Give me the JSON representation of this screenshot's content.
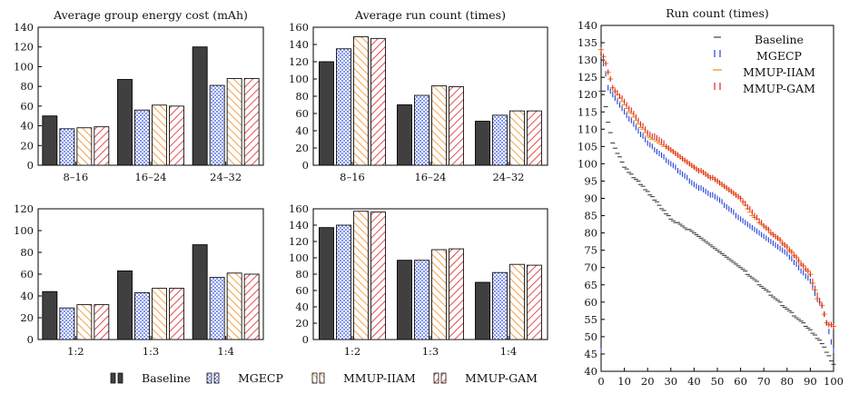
{
  "colors": {
    "Baseline": "#404040",
    "MGECP": "#1f3fd8",
    "MMUP-IIAM": "#f08a18",
    "MMUP-GAM": "#e02020"
  },
  "chart_data": [
    {
      "id": "energy_cost_A",
      "type": "bar",
      "title": "Average group energy cost (mAh)",
      "categories": [
        "8–16",
        "16–24",
        "24–32"
      ],
      "ylim": [
        0,
        140
      ],
      "yticks": [
        0,
        20,
        40,
        60,
        80,
        100,
        120,
        140
      ],
      "series": [
        {
          "name": "Baseline",
          "values": [
            50,
            87,
            120
          ]
        },
        {
          "name": "MGECP",
          "values": [
            37,
            56,
            81
          ]
        },
        {
          "name": "MMUP-IIAM",
          "values": [
            38,
            61,
            88
          ]
        },
        {
          "name": "MMUP-GAM",
          "values": [
            39,
            60,
            88
          ]
        }
      ]
    },
    {
      "id": "run_count_A",
      "type": "bar",
      "title": "Average run count (times)",
      "categories": [
        "8–16",
        "16–24",
        "24–32"
      ],
      "ylim": [
        0,
        160
      ],
      "yticks": [
        0,
        20,
        40,
        60,
        80,
        100,
        120,
        140,
        160
      ],
      "series": [
        {
          "name": "Baseline",
          "values": [
            120,
            70,
            51
          ]
        },
        {
          "name": "MGECP",
          "values": [
            135,
            81,
            58
          ]
        },
        {
          "name": "MMUP-IIAM",
          "values": [
            149,
            92,
            63
          ]
        },
        {
          "name": "MMUP-GAM",
          "values": [
            147,
            91,
            63
          ]
        }
      ]
    },
    {
      "id": "energy_cost_B",
      "type": "bar",
      "title": "",
      "categories": [
        "1:2",
        "1:3",
        "1:4"
      ],
      "ylim": [
        0,
        120
      ],
      "yticks": [
        0,
        20,
        40,
        60,
        80,
        100,
        120
      ],
      "series": [
        {
          "name": "Baseline",
          "values": [
            44,
            63,
            87
          ]
        },
        {
          "name": "MGECP",
          "values": [
            29,
            43,
            57
          ]
        },
        {
          "name": "MMUP-IIAM",
          "values": [
            32,
            47,
            61
          ]
        },
        {
          "name": "MMUP-GAM",
          "values": [
            32,
            47,
            60
          ]
        }
      ]
    },
    {
      "id": "run_count_B",
      "type": "bar",
      "title": "",
      "categories": [
        "1:2",
        "1:3",
        "1:4"
      ],
      "ylim": [
        0,
        160
      ],
      "yticks": [
        0,
        20,
        40,
        60,
        80,
        100,
        120,
        140,
        160
      ],
      "series": [
        {
          "name": "Baseline",
          "values": [
            137,
            97,
            70
          ]
        },
        {
          "name": "MGECP",
          "values": [
            140,
            97,
            82
          ]
        },
        {
          "name": "MMUP-IIAM",
          "values": [
            157,
            110,
            92
          ]
        },
        {
          "name": "MMUP-GAM",
          "values": [
            156,
            111,
            91
          ]
        }
      ]
    },
    {
      "id": "run_count_scatter",
      "type": "scatter",
      "title": "Run count (times)",
      "xlim": [
        0,
        100
      ],
      "ylim": [
        40,
        140
      ],
      "xticks": [
        0,
        10,
        20,
        30,
        40,
        50,
        60,
        70,
        80,
        90,
        100
      ],
      "yticks": [
        40,
        45,
        50,
        55,
        60,
        65,
        70,
        75,
        80,
        85,
        90,
        95,
        100,
        105,
        110,
        115,
        120,
        125,
        130,
        135,
        140
      ],
      "legend_position": "top-right",
      "series": [
        {
          "name": "Baseline",
          "start": 121,
          "end": 42,
          "trend": [
            [
              0,
              121
            ],
            [
              1,
              121
            ],
            [
              3,
              112
            ],
            [
              5,
              106
            ],
            [
              10,
              99
            ],
            [
              20,
              92
            ],
            [
              25,
              88
            ],
            [
              30,
              84
            ],
            [
              40,
              80
            ],
            [
              50,
              75
            ],
            [
              60,
              70
            ],
            [
              70,
              64
            ],
            [
              80,
              58
            ],
            [
              90,
              52
            ],
            [
              95,
              48
            ],
            [
              100,
              42
            ]
          ]
        },
        {
          "name": "MGECP",
          "start": 129,
          "end": 46,
          "trend": [
            [
              1,
              129
            ],
            [
              2,
              126
            ],
            [
              3,
              122
            ],
            [
              5,
              120
            ],
            [
              10,
              115
            ],
            [
              20,
              106
            ],
            [
              30,
              100
            ],
            [
              40,
              94
            ],
            [
              50,
              90
            ],
            [
              60,
              84
            ],
            [
              70,
              79
            ],
            [
              80,
              74
            ],
            [
              90,
              66
            ],
            [
              93,
              61
            ],
            [
              95,
              59
            ],
            [
              97,
              54
            ],
            [
              100,
              46
            ]
          ]
        },
        {
          "name": "MMUP-IIAM",
          "start": 133,
          "end": 53,
          "trend": [
            [
              0,
              133
            ],
            [
              2,
              129
            ],
            [
              5,
              122
            ],
            [
              10,
              117
            ],
            [
              20,
              108
            ],
            [
              25,
              106
            ],
            [
              30,
              104
            ],
            [
              40,
              99
            ],
            [
              50,
              95
            ],
            [
              60,
              90
            ],
            [
              65,
              85
            ],
            [
              70,
              82
            ],
            [
              80,
              76
            ],
            [
              90,
              68
            ],
            [
              93,
              61
            ],
            [
              95,
              59
            ],
            [
              97,
              54
            ],
            [
              100,
              53
            ]
          ]
        },
        {
          "name": "MMUP-GAM",
          "start": 133,
          "end": 53,
          "trend": [
            [
              0,
              133
            ],
            [
              2,
              129
            ],
            [
              5,
              122
            ],
            [
              10,
              118
            ],
            [
              20,
              109
            ],
            [
              25,
              107
            ],
            [
              30,
              104
            ],
            [
              40,
              99
            ],
            [
              50,
              95
            ],
            [
              60,
              90
            ],
            [
              65,
              86
            ],
            [
              70,
              82
            ],
            [
              80,
              76
            ],
            [
              90,
              68
            ],
            [
              93,
              62
            ],
            [
              95,
              59
            ],
            [
              97,
              54
            ],
            [
              100,
              53
            ]
          ]
        }
      ]
    }
  ],
  "legend_bottom": [
    "Baseline",
    "MGECP",
    "MMUP-IIAM",
    "MMUP-GAM"
  ]
}
